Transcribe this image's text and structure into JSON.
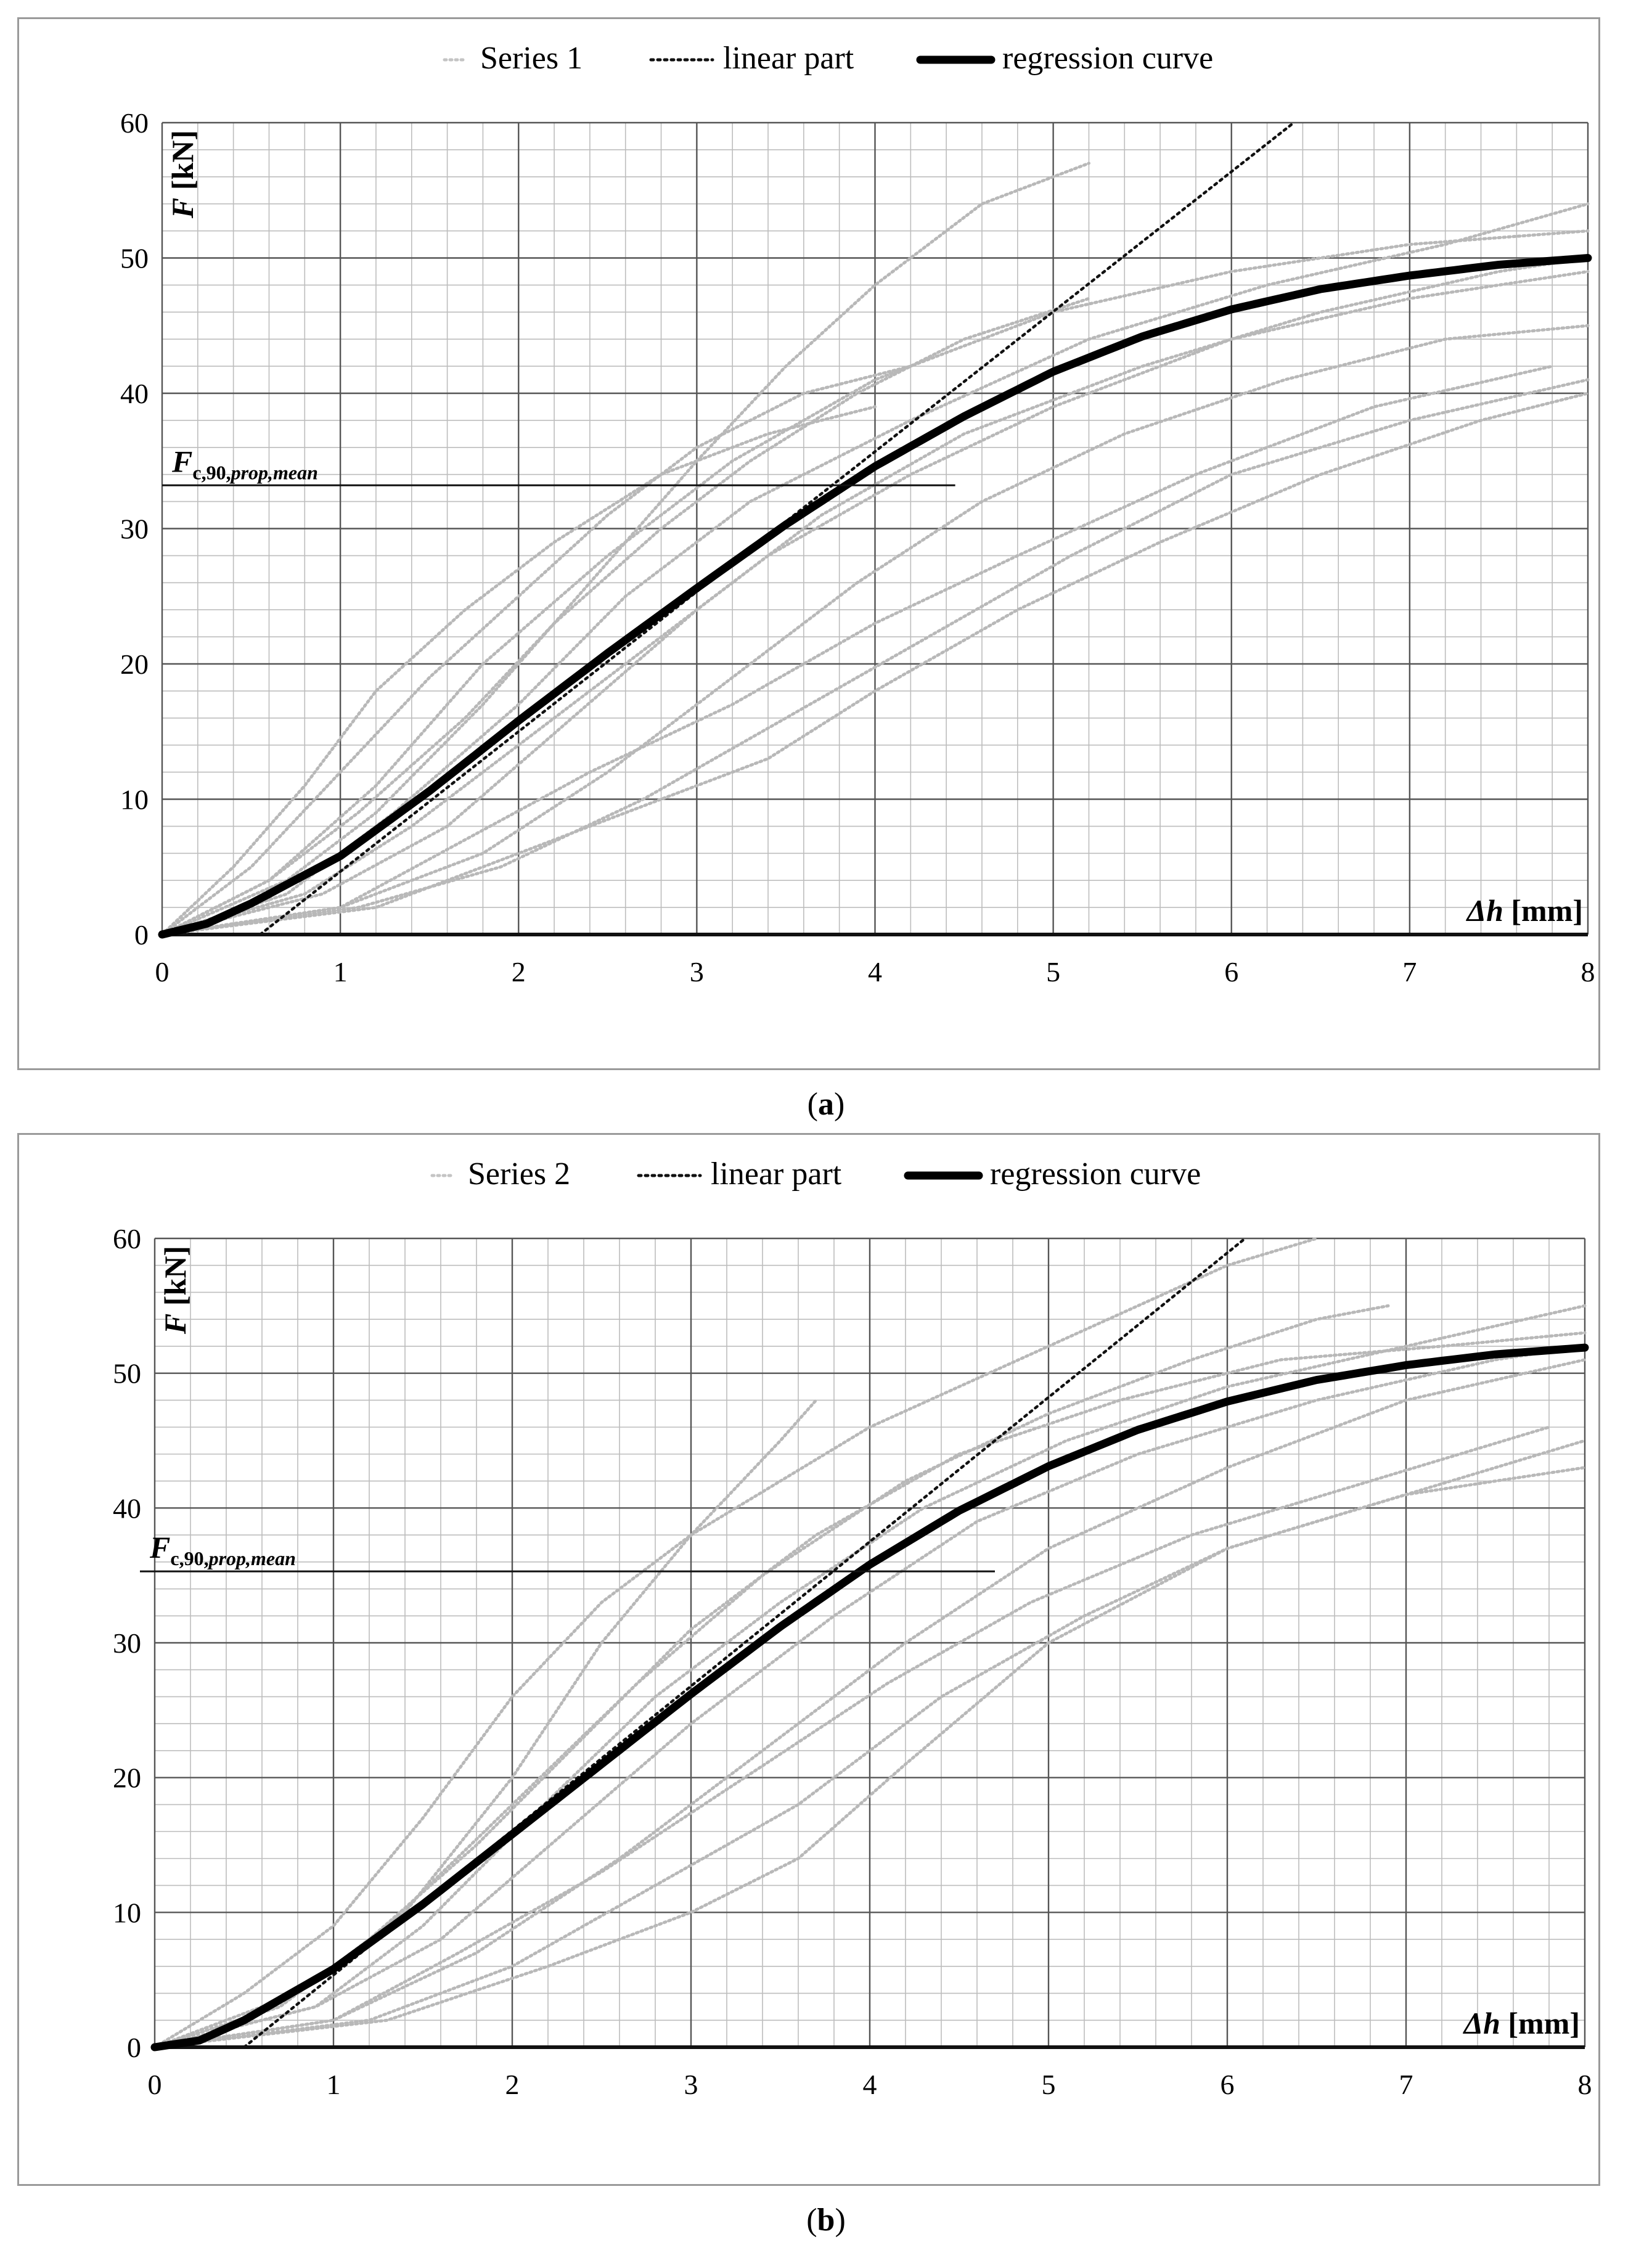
{
  "chart_data": [
    {
      "type": "line",
      "panel": "a",
      "caption_letter": "a",
      "legend": {
        "scatter": "Series 1",
        "linear": "linear part",
        "regression": "regression curve"
      },
      "xlabel_italic": "Δh",
      "xlabel_unit": "[mm]",
      "ylabel_italic": "F",
      "ylabel_unit": "[kN]",
      "xlim": [
        0,
        8
      ],
      "ylim": [
        0,
        60
      ],
      "xticks": [
        "0",
        "1",
        "2",
        "3",
        "4",
        "5",
        "6",
        "7",
        "8"
      ],
      "yticks": [
        "0",
        "10",
        "20",
        "30",
        "40",
        "50",
        "60"
      ],
      "annotation": {
        "main": "F",
        "sub": "c,90,",
        "sub_italic": "prop,mean",
        "y": 33.2,
        "x_end": 4.45
      },
      "linear_part": {
        "x": [
          0.55,
          6.35
        ],
        "y": [
          0,
          60
        ]
      },
      "regression_curve": {
        "x": [
          0,
          0.25,
          0.5,
          1,
          1.5,
          2,
          2.5,
          3,
          3.5,
          4,
          4.5,
          5,
          5.5,
          6,
          6.5,
          7,
          7.5,
          8
        ],
        "y": [
          0,
          0.8,
          2.3,
          5.8,
          10.6,
          15.8,
          20.8,
          25.6,
          30.3,
          34.6,
          38.3,
          41.6,
          44.2,
          46.2,
          47.7,
          48.7,
          49.5,
          50.0
        ]
      },
      "series": [
        {
          "name": "Series 1",
          "x": [
            0,
            0.7,
            1.2,
            1.8,
            2.4,
            3.0,
            3.5,
            4.0,
            4.6,
            5.2
          ],
          "y": [
            0,
            4,
            9,
            17,
            26,
            35,
            42,
            48,
            54,
            57
          ]
        },
        {
          "name": "Series 1",
          "x": [
            0,
            0.6,
            1.2,
            1.8,
            2.5,
            3.2,
            4.0,
            5.0,
            6.0,
            7.0,
            8.0
          ],
          "y": [
            0,
            4,
            11,
            20,
            28,
            35,
            41,
            46,
            49,
            51,
            52
          ]
        },
        {
          "name": "Series 1",
          "x": [
            0,
            0.7,
            1.3,
            2.0,
            2.6,
            3.3,
            4.2,
            5.2,
            6.2,
            7.2,
            8.0
          ],
          "y": [
            0,
            3,
            9,
            17,
            25,
            32,
            38,
            44,
            48,
            51,
            54
          ]
        },
        {
          "name": "Series 1",
          "x": [
            0,
            0.9,
            1.6,
            2.3,
            3.0,
            3.7,
            4.5,
            5.5,
            6.5,
            7.5,
            8.0
          ],
          "y": [
            0,
            3,
            8,
            16,
            24,
            31,
            37,
            42,
            46,
            49,
            50
          ]
        },
        {
          "name": "Series 1",
          "x": [
            0,
            0.6,
            1.1,
            1.7,
            2.2,
            2.8,
            3.3,
            3.9,
            4.5,
            5.2
          ],
          "y": [
            0,
            4,
            9,
            16,
            23,
            30,
            35,
            40,
            44,
            47
          ]
        },
        {
          "name": "Series 1",
          "x": [
            0,
            1.0,
            1.8,
            2.5,
            3.2,
            3.9,
            4.6,
            5.4,
            6.3,
            7.2,
            8.0
          ],
          "y": [
            0,
            2,
            6,
            12,
            19,
            26,
            32,
            37,
            41,
            44,
            45
          ]
        },
        {
          "name": "Series 1",
          "x": [
            0,
            1.2,
            2.0,
            2.8,
            3.4,
            4.0,
            4.8,
            5.6,
            6.5,
            7.4,
            8.0
          ],
          "y": [
            0,
            2,
            6,
            10,
            13,
            18,
            24,
            29,
            34,
            38,
            40
          ]
        },
        {
          "name": "Series 1",
          "x": [
            0,
            1.0,
            1.7,
            2.4,
            3.2,
            4.0,
            4.8,
            5.8,
            6.8,
            7.8
          ],
          "y": [
            0,
            2,
            7,
            12,
            17,
            23,
            28,
            34,
            39,
            42
          ]
        },
        {
          "name": "Series 1",
          "x": [
            0,
            0.5,
            1.0,
            1.5,
            2.0,
            2.5,
            3.0,
            3.6,
            4.2
          ],
          "y": [
            0,
            5,
            12,
            19,
            25,
            31,
            36,
            40,
            42
          ]
        },
        {
          "name": "Series 1",
          "x": [
            0,
            0.8,
            1.4,
            2.0,
            2.7,
            3.4,
            4.2,
            5.0,
            6.0,
            7.0,
            8.0
          ],
          "y": [
            0,
            3,
            8,
            14,
            21,
            28,
            34,
            39,
            44,
            47,
            49
          ]
        },
        {
          "name": "Series 1",
          "x": [
            0,
            1.1,
            1.9,
            2.7,
            3.5,
            4.3,
            5.1,
            6.0,
            7.0,
            8.0
          ],
          "y": [
            0,
            2,
            5,
            10,
            16,
            22,
            28,
            34,
            38,
            41
          ]
        },
        {
          "name": "Series 1",
          "x": [
            0,
            0.4,
            0.8,
            1.2,
            1.7,
            2.2,
            2.8,
            3.4,
            4.0
          ],
          "y": [
            0,
            5,
            11,
            18,
            24,
            29,
            34,
            37,
            39
          ]
        }
      ]
    },
    {
      "type": "line",
      "panel": "b",
      "caption_letter": "b",
      "legend": {
        "scatter": "Series 2",
        "linear": "linear part",
        "regression": "regression curve"
      },
      "xlabel_italic": "Δh",
      "xlabel_unit": "[mm]",
      "ylabel_italic": "F",
      "ylabel_unit": "[kN]",
      "xlim": [
        0,
        8
      ],
      "ylim": [
        0,
        60
      ],
      "xticks": [
        "0",
        "1",
        "2",
        "3",
        "4",
        "5",
        "6",
        "7",
        "8"
      ],
      "yticks": [
        "0",
        "10",
        "20",
        "30",
        "40",
        "50",
        "60"
      ],
      "annotation": {
        "main": "F",
        "sub": "c,90,",
        "sub_italic": "prop,mean",
        "y": 35.3,
        "x_end": 4.7
      },
      "linear_part": {
        "x": [
          0.5,
          6.1
        ],
        "y": [
          0,
          60
        ]
      },
      "regression_curve": {
        "x": [
          0,
          0.25,
          0.5,
          1,
          1.5,
          2,
          2.5,
          3,
          3.5,
          4,
          4.5,
          5,
          5.5,
          6,
          6.5,
          7,
          7.5,
          8
        ],
        "y": [
          0,
          0.5,
          2.0,
          5.8,
          10.6,
          15.8,
          21.0,
          26.2,
          31.2,
          35.8,
          39.8,
          43.1,
          45.8,
          47.9,
          49.5,
          50.6,
          51.4,
          51.9
        ]
      },
      "series": [
        {
          "name": "Series 2",
          "x": [
            0,
            0.5,
            1.0,
            1.5,
            2.0,
            2.5,
            3.0,
            3.5,
            4.0,
            4.5,
            5.0,
            5.5,
            6.0,
            6.5
          ],
          "y": [
            0,
            4,
            9,
            17,
            26,
            33,
            38,
            42,
            46,
            49,
            52,
            55,
            58,
            60
          ]
        },
        {
          "name": "Series 2",
          "x": [
            0,
            0.8,
            1.4,
            2.0,
            2.5,
            3.0,
            3.5,
            3.7
          ],
          "y": [
            0,
            4,
            10,
            20,
            30,
            38,
            45,
            48
          ]
        },
        {
          "name": "Series 2",
          "x": [
            0,
            0.7,
            1.3,
            2.0,
            2.7,
            3.4,
            4.2,
            5.0,
            5.8,
            6.5,
            6.9
          ],
          "y": [
            0,
            3,
            9,
            18,
            27,
            35,
            42,
            47,
            51,
            54,
            55
          ]
        },
        {
          "name": "Series 2",
          "x": [
            0,
            0.9,
            1.6,
            2.3,
            3.0,
            3.8,
            4.6,
            5.5,
            6.5,
            7.5,
            8.0
          ],
          "y": [
            0,
            3,
            8,
            16,
            24,
            32,
            39,
            44,
            48,
            51,
            52
          ]
        },
        {
          "name": "Series 2",
          "x": [
            0,
            1.0,
            1.8,
            2.6,
            3.4,
            4.2,
            5.0,
            6.0,
            7.0,
            8.0
          ],
          "y": [
            0,
            2,
            7,
            14,
            22,
            30,
            37,
            43,
            48,
            51
          ]
        },
        {
          "name": "Series 2",
          "x": [
            0,
            1.2,
            2.0,
            2.8,
            3.6,
            4.4,
            5.2,
            6.0,
            7.0,
            8.0
          ],
          "y": [
            0,
            2,
            6,
            12,
            18,
            26,
            32,
            37,
            41,
            43
          ]
        },
        {
          "name": "Series 2",
          "x": [
            0,
            1.3,
            2.2,
            3.0,
            3.6,
            4.2,
            5.0,
            6.0,
            7.0,
            8.0
          ],
          "y": [
            0,
            2,
            6,
            10,
            14,
            21,
            30,
            37,
            41,
            45
          ]
        },
        {
          "name": "Series 2",
          "x": [
            0,
            0.9,
            1.5,
            2.1,
            2.8,
            3.5,
            4.3,
            5.1,
            6.0,
            7.0,
            8.0
          ],
          "y": [
            0,
            3,
            9,
            17,
            26,
            33,
            40,
            45,
            49,
            52,
            55
          ]
        },
        {
          "name": "Series 2",
          "x": [
            0,
            1.0,
            1.7,
            2.5,
            3.3,
            4.1,
            4.9,
            5.8,
            6.8,
            7.8
          ],
          "y": [
            0,
            2,
            7,
            13,
            20,
            27,
            33,
            38,
            42,
            46
          ]
        },
        {
          "name": "Series 2",
          "x": [
            0,
            0.7,
            1.2,
            1.8,
            2.4,
            3.0,
            3.7,
            4.5,
            5.4,
            6.3,
            7.2,
            8.0
          ],
          "y": [
            0,
            3,
            8,
            15,
            23,
            31,
            38,
            44,
            48,
            51,
            52,
            53
          ]
        }
      ]
    }
  ]
}
